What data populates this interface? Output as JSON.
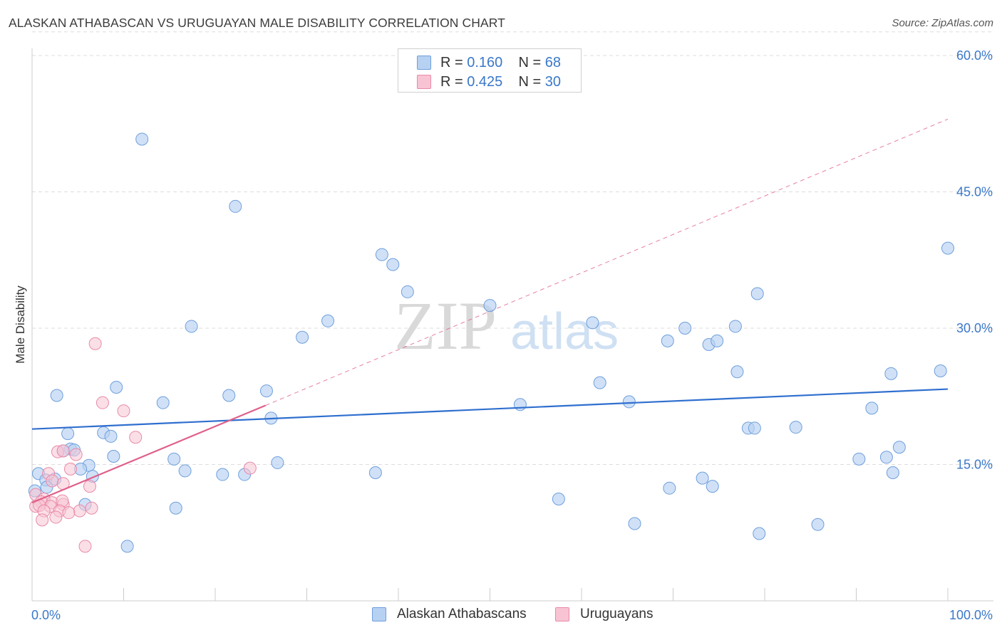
{
  "title": "ALASKAN ATHABASCAN VS URUGUAYAN MALE DISABILITY CORRELATION CHART",
  "source": "Source: ZipAtlas.com",
  "watermark": {
    "zip": "ZIP",
    "atlas": "atlas"
  },
  "colors": {
    "blue_fill": "#b7d1f2",
    "blue_stroke": "#6f9fdc",
    "blue_line": "#2f6fcf",
    "pink_fill": "#f8c4d3",
    "pink_stroke": "#e98aa8",
    "pink_line": "#e0608a",
    "tick_label": "#3a78c9",
    "grid": "#dddddd"
  },
  "legend": {
    "rows": [
      {
        "r_label": "R =",
        "r_value": "0.160",
        "n_label": "N =",
        "n_value": "68"
      },
      {
        "r_label": "R =",
        "r_value": "0.425",
        "n_label": "N =",
        "n_value": "30"
      }
    ]
  },
  "bottom_legend": {
    "series1": "Alaskan Athabascans",
    "series2": "Uruguayans"
  },
  "chart_data": {
    "type": "scatter",
    "title": "ALASKAN ATHABASCAN VS URUGUAYAN MALE DISABILITY CORRELATION CHART",
    "xlabel": "",
    "ylabel": "Male Disability",
    "xlim": [
      0,
      100
    ],
    "ylim": [
      0,
      60
    ],
    "x_tick_labels": {
      "left": "0.0%",
      "right": "100.0%"
    },
    "y_ticks": [
      15,
      30,
      45,
      60
    ],
    "y_tick_labels": [
      "15.0%",
      "30.0%",
      "45.0%",
      "60.0%"
    ],
    "series": [
      {
        "name": "Alaskan Athabascans",
        "r": 0.16,
        "n": 68,
        "trend": {
          "x0": 0,
          "y0": 18.9,
          "x1": 100,
          "y1": 23.3
        },
        "points": [
          [
            12.0,
            50.8
          ],
          [
            22.2,
            43.4
          ],
          [
            38.2,
            38.1
          ],
          [
            39.4,
            37.0
          ],
          [
            41.0,
            34.0
          ],
          [
            100.0,
            38.8
          ],
          [
            79.2,
            33.8
          ],
          [
            50.0,
            32.5
          ],
          [
            32.3,
            30.8
          ],
          [
            29.5,
            29.0
          ],
          [
            17.4,
            30.2
          ],
          [
            61.2,
            30.6
          ],
          [
            71.3,
            30.0
          ],
          [
            76.8,
            30.2
          ],
          [
            69.4,
            28.6
          ],
          [
            73.9,
            28.2
          ],
          [
            74.8,
            28.6
          ],
          [
            77.0,
            25.2
          ],
          [
            93.8,
            25.0
          ],
          [
            99.2,
            25.3
          ],
          [
            62.0,
            24.0
          ],
          [
            9.2,
            23.5
          ],
          [
            2.7,
            22.6
          ],
          [
            21.5,
            22.6
          ],
          [
            25.6,
            23.1
          ],
          [
            14.3,
            21.8
          ],
          [
            53.3,
            21.6
          ],
          [
            65.2,
            21.9
          ],
          [
            91.7,
            21.2
          ],
          [
            26.1,
            20.1
          ],
          [
            3.9,
            18.4
          ],
          [
            7.8,
            18.5
          ],
          [
            8.6,
            18.1
          ],
          [
            78.2,
            19.0
          ],
          [
            78.9,
            19.0
          ],
          [
            83.4,
            19.1
          ],
          [
            4.2,
            16.7
          ],
          [
            4.6,
            16.6
          ],
          [
            3.4,
            16.5
          ],
          [
            8.9,
            15.9
          ],
          [
            15.5,
            15.6
          ],
          [
            26.8,
            15.2
          ],
          [
            94.7,
            16.9
          ],
          [
            90.3,
            15.6
          ],
          [
            93.3,
            15.8
          ],
          [
            6.2,
            14.9
          ],
          [
            5.3,
            14.5
          ],
          [
            16.7,
            14.3
          ],
          [
            20.8,
            13.9
          ],
          [
            23.2,
            13.9
          ],
          [
            37.5,
            14.1
          ],
          [
            94.0,
            14.1
          ],
          [
            0.7,
            14.0
          ],
          [
            1.5,
            13.3
          ],
          [
            6.6,
            13.7
          ],
          [
            73.2,
            13.5
          ],
          [
            74.3,
            12.6
          ],
          [
            69.6,
            12.4
          ],
          [
            0.3,
            12.1
          ],
          [
            1.6,
            12.5
          ],
          [
            57.5,
            11.2
          ],
          [
            5.8,
            10.6
          ],
          [
            15.7,
            10.2
          ],
          [
            65.8,
            8.5
          ],
          [
            85.8,
            8.4
          ],
          [
            79.4,
            7.4
          ],
          [
            10.4,
            6.0
          ],
          [
            2.5,
            13.4
          ]
        ]
      },
      {
        "name": "Uruguayans",
        "r": 0.425,
        "n": 30,
        "trend": {
          "x0": 0,
          "y0": 10.8,
          "x1": 25.5,
          "y1": 21.5
        },
        "trend_extended": {
          "x0": 25.5,
          "y0": 21.5,
          "x1": 100,
          "y1": 53.0
        },
        "points": [
          [
            6.9,
            28.3
          ],
          [
            7.7,
            21.8
          ],
          [
            10.0,
            20.9
          ],
          [
            11.3,
            18.0
          ],
          [
            2.8,
            16.4
          ],
          [
            3.4,
            16.5
          ],
          [
            4.8,
            16.1
          ],
          [
            4.2,
            14.5
          ],
          [
            23.8,
            14.6
          ],
          [
            1.8,
            14.0
          ],
          [
            2.2,
            13.2
          ],
          [
            3.4,
            12.9
          ],
          [
            6.3,
            12.6
          ],
          [
            0.4,
            11.7
          ],
          [
            1.3,
            11.2
          ],
          [
            1.0,
            10.9
          ],
          [
            2.2,
            10.8
          ],
          [
            2.0,
            10.4
          ],
          [
            3.4,
            10.6
          ],
          [
            0.4,
            10.4
          ],
          [
            3.3,
            11.0
          ],
          [
            0.8,
            10.5
          ],
          [
            1.3,
            9.9
          ],
          [
            3.0,
            9.9
          ],
          [
            5.2,
            9.9
          ],
          [
            4.0,
            9.7
          ],
          [
            6.5,
            10.2
          ],
          [
            2.6,
            9.2
          ],
          [
            1.1,
            8.9
          ],
          [
            5.8,
            6.0
          ]
        ]
      }
    ]
  }
}
